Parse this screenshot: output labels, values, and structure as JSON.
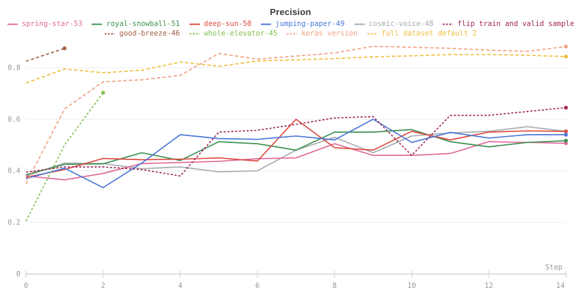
{
  "title": "Precision",
  "x_axis": {
    "label": "Step",
    "ticks": [
      0,
      2,
      4,
      6,
      8,
      10,
      12,
      14
    ]
  },
  "y_axis": {
    "ticks": [
      0,
      0.2,
      0.4,
      0.6,
      0.8
    ]
  },
  "colors": {
    "title_text": "#3b3b3b",
    "axis_text": "#9a9aa2",
    "gridline": "#ededf0",
    "axis_line": "#dcdce2",
    "background": "#ffffff"
  },
  "chart_data": {
    "type": "line",
    "title": "Precision",
    "xlabel": "Step",
    "ylabel": "",
    "x_range": [
      0,
      14
    ],
    "y_range": [
      0,
      0.9
    ],
    "grid": true,
    "legend_position": "top",
    "x_step": 1,
    "series": [
      {
        "name": "spring-star-53",
        "color": "#e0699b",
        "style": "solid",
        "dash": "",
        "values": [
          0.38,
          0.365,
          0.39,
          0.428,
          0.432,
          0.437,
          0.447,
          0.45,
          0.505,
          0.46,
          0.46,
          0.467,
          0.513,
          0.51,
          0.507
        ]
      },
      {
        "name": "royal-snowball-51",
        "color": "#3d9150",
        "style": "solid",
        "dash": "",
        "values": [
          0.385,
          0.425,
          0.427,
          0.47,
          0.44,
          0.513,
          0.505,
          0.48,
          0.55,
          0.55,
          0.56,
          0.513,
          0.493,
          0.51,
          0.517
        ]
      },
      {
        "name": "deep-sun-50",
        "color": "#dd4a43",
        "style": "solid",
        "dash": "",
        "values": [
          0.375,
          0.405,
          0.448,
          0.443,
          0.445,
          0.45,
          0.438,
          0.6,
          0.49,
          0.48,
          0.553,
          0.52,
          0.55,
          0.555,
          0.553
        ]
      },
      {
        "name": "jumping-paper-49",
        "color": "#4a77d8",
        "style": "solid",
        "dash": "",
        "values": [
          0.37,
          0.41,
          0.335,
          0.43,
          0.54,
          0.525,
          0.522,
          0.535,
          0.52,
          0.6,
          0.51,
          0.549,
          0.527,
          0.54,
          0.54
        ]
      },
      {
        "name": "cosmic-voice-48",
        "color": "#a6abb0",
        "style": "solid",
        "dash": "",
        "values": [
          0.38,
          0.43,
          0.428,
          0.408,
          0.415,
          0.396,
          0.4,
          0.48,
          0.53,
          0.47,
          0.535,
          0.547,
          0.553,
          0.571,
          0.553
        ]
      },
      {
        "name": "flip train and valid sample",
        "color": "#a02558",
        "style": "dashed",
        "dash": "3 2.6",
        "values": [
          0.395,
          0.415,
          0.415,
          0.405,
          0.38,
          0.55,
          0.557,
          0.58,
          0.605,
          0.61,
          0.46,
          0.615,
          0.615,
          0.63,
          0.645
        ]
      },
      {
        "name": "good-breeze-46",
        "color": "#a35d43",
        "style": "dashed",
        "dash": "4.5 3.2",
        "values": [
          0.825,
          0.875
        ]
      },
      {
        "name": "whole-elevator-45",
        "color": "#82c04f",
        "style": "dashed",
        "dash": "3.2 2.8",
        "values": [
          0.205,
          0.5,
          0.703
        ]
      },
      {
        "name": "keras version",
        "color": "#f2a183",
        "style": "dashed",
        "dash": "5 3.2",
        "values": [
          0.35,
          0.64,
          0.745,
          0.753,
          0.77,
          0.855,
          0.833,
          0.845,
          0.857,
          0.883,
          0.879,
          0.875,
          0.868,
          0.863,
          0.882
        ]
      },
      {
        "name": "full dataset default 2",
        "color": "#efbe3d",
        "style": "dashed",
        "dash": "5 3.2",
        "values": [
          0.74,
          0.795,
          0.78,
          0.79,
          0.822,
          0.805,
          0.826,
          0.83,
          0.835,
          0.842,
          0.846,
          0.851,
          0.851,
          0.848,
          0.843
        ]
      }
    ],
    "legend_rows": [
      [
        0,
        1,
        2,
        3,
        4,
        5
      ],
      [
        6,
        7,
        8,
        9
      ]
    ]
  }
}
